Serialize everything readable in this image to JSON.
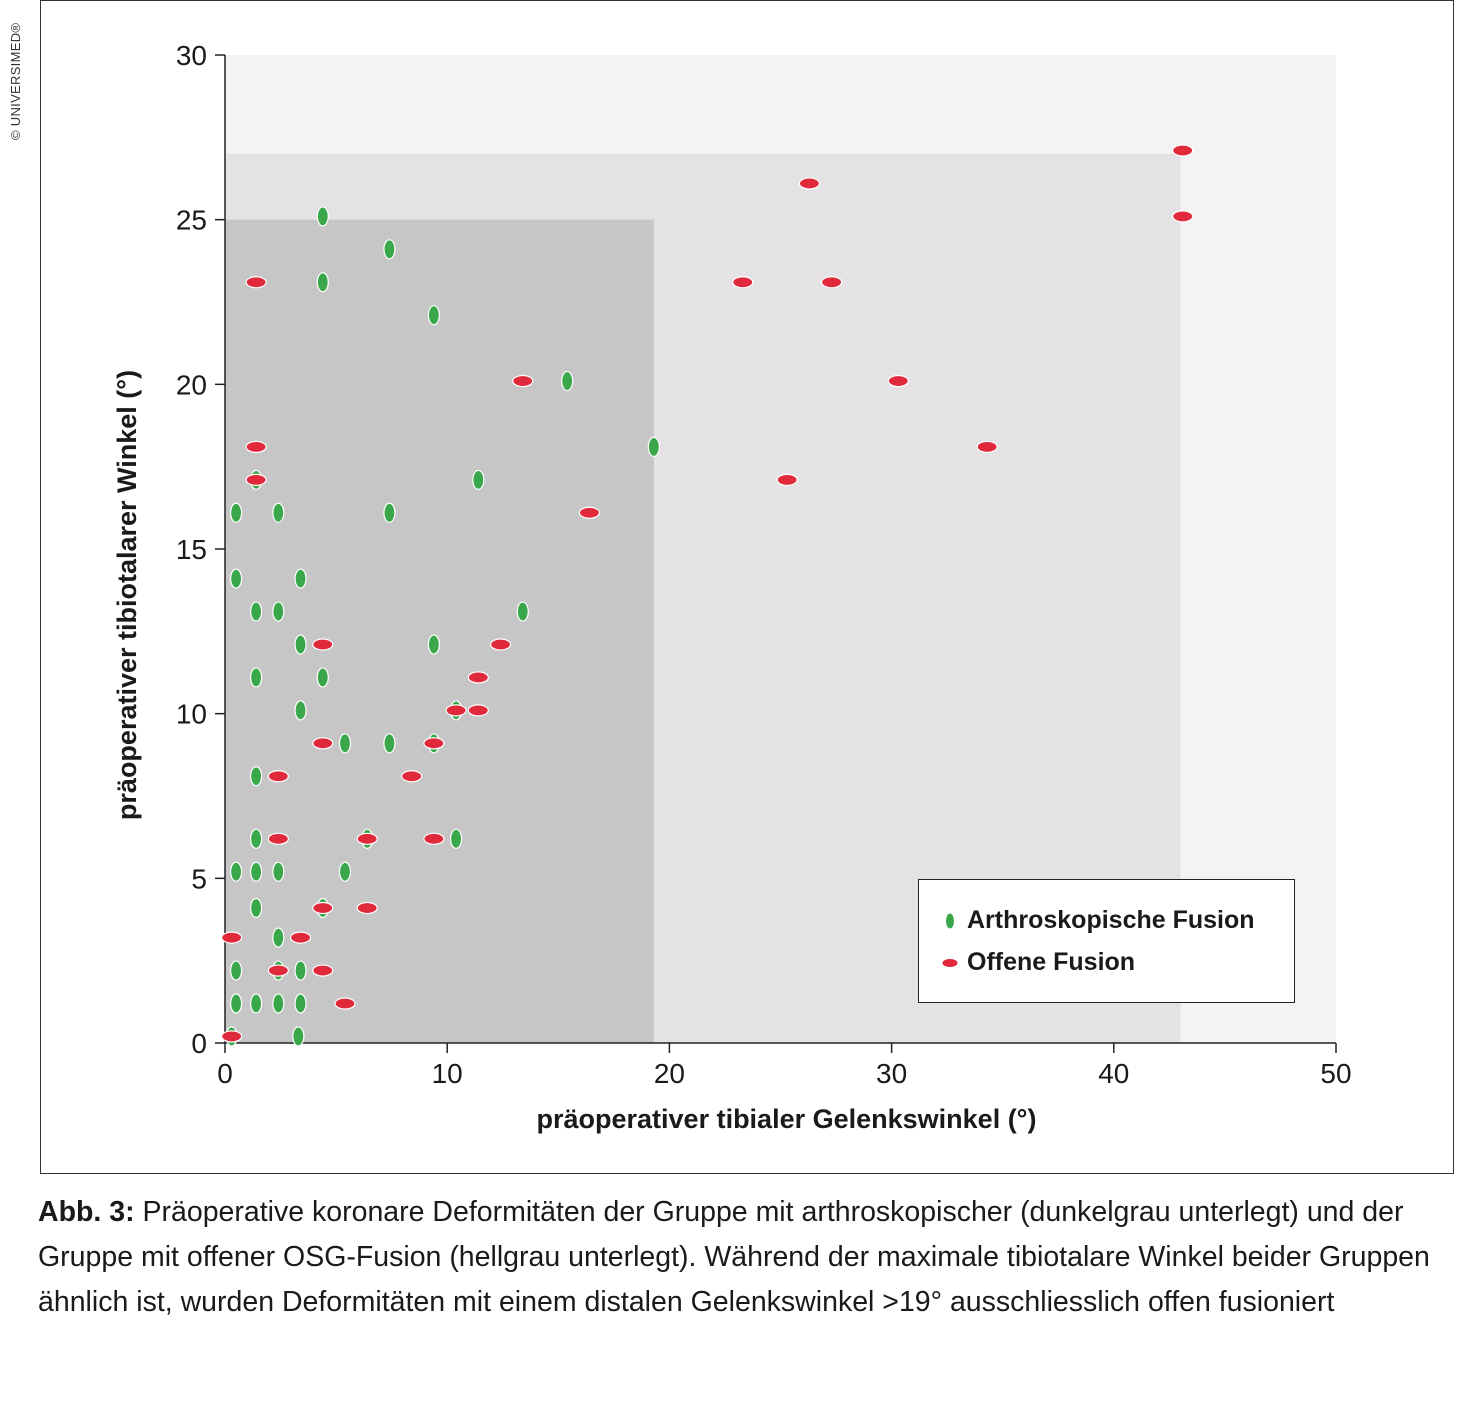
{
  "copyright": "© UNIVERSIMED®",
  "colors": {
    "arthro": "#3aa84a",
    "open": "#e0293a",
    "dark_region": "#c6c6c6",
    "light_region": "#e5e2e5",
    "plot_bg": "#f3f3f3"
  },
  "legend": {
    "arthro_label": "Arthroskopische Fusion",
    "open_label": "Offene Fusion"
  },
  "caption": {
    "label": "Abb. 3:",
    "text": " Präoperative koronare Deformitäten der Gruppe mit arthroskopischer (dunkelgrau unterlegt) und der Gruppe mit offener OSG-Fusion (hellgrau unterlegt). Während der maximale tibiotalare Winkel beider Gruppen ähnlich ist, wurden Deformitäten mit einem distalen Gelenkswinkel >19° ausschliesslich offen fusioniert"
  },
  "chart_data": {
    "type": "scatter",
    "xlabel": "präoperativer tibialer Gelenkswinkel (°)",
    "ylabel": "präoperativer tibiotalarer Winkel (°)",
    "xlim": [
      0,
      50
    ],
    "ylim": [
      0,
      30
    ],
    "xticks": [
      0,
      10,
      20,
      30,
      40,
      50
    ],
    "yticks": [
      0,
      5,
      10,
      15,
      20,
      25,
      30
    ],
    "legend_position": "bottom-right",
    "regions": [
      {
        "name": "hellgrau unterlegt",
        "x": [
          0,
          43
        ],
        "y": [
          0,
          27
        ]
      },
      {
        "name": "dunkelgrau unterlegt",
        "x": [
          0,
          19.3
        ],
        "y": [
          0,
          25
        ]
      }
    ],
    "series": [
      {
        "name": "Arthroskopische Fusion",
        "marker": "vertical-ellipse",
        "points": [
          [
            0.3,
            0.2
          ],
          [
            3.3,
            0.2
          ],
          [
            0.5,
            1.2
          ],
          [
            1.4,
            1.2
          ],
          [
            2.4,
            1.2
          ],
          [
            3.4,
            1.2
          ],
          [
            0.5,
            2.2
          ],
          [
            2.4,
            2.2
          ],
          [
            3.4,
            2.2
          ],
          [
            2.4,
            3.2
          ],
          [
            1.4,
            4.1
          ],
          [
            4.4,
            4.1
          ],
          [
            0.5,
            5.2
          ],
          [
            1.4,
            5.2
          ],
          [
            2.4,
            5.2
          ],
          [
            5.4,
            5.2
          ],
          [
            1.4,
            6.2
          ],
          [
            6.4,
            6.2
          ],
          [
            10.4,
            6.2
          ],
          [
            1.4,
            8.1
          ],
          [
            5.4,
            9.1
          ],
          [
            7.4,
            9.1
          ],
          [
            9.4,
            9.1
          ],
          [
            3.4,
            10.1
          ],
          [
            10.4,
            10.1
          ],
          [
            1.4,
            11.1
          ],
          [
            4.4,
            11.1
          ],
          [
            3.4,
            12.1
          ],
          [
            9.4,
            12.1
          ],
          [
            1.4,
            13.1
          ],
          [
            2.4,
            13.1
          ],
          [
            13.4,
            13.1
          ],
          [
            0.5,
            14.1
          ],
          [
            3.4,
            14.1
          ],
          [
            0.5,
            16.1
          ],
          [
            2.4,
            16.1
          ],
          [
            7.4,
            16.1
          ],
          [
            1.4,
            17.1
          ],
          [
            11.4,
            17.1
          ],
          [
            19.3,
            18.1
          ],
          [
            15.4,
            20.1
          ],
          [
            9.4,
            22.1
          ],
          [
            4.4,
            23.1
          ],
          [
            7.4,
            24.1
          ],
          [
            4.4,
            25.1
          ]
        ]
      },
      {
        "name": "Offene Fusion",
        "marker": "horizontal-ellipse",
        "points": [
          [
            0.3,
            0.2
          ],
          [
            5.4,
            1.2
          ],
          [
            2.4,
            2.2
          ],
          [
            4.4,
            2.2
          ],
          [
            0.3,
            3.2
          ],
          [
            3.4,
            3.2
          ],
          [
            4.4,
            4.1
          ],
          [
            6.4,
            4.1
          ],
          [
            2.4,
            6.2
          ],
          [
            6.4,
            6.2
          ],
          [
            9.4,
            6.2
          ],
          [
            2.4,
            8.1
          ],
          [
            8.4,
            8.1
          ],
          [
            4.4,
            9.1
          ],
          [
            9.4,
            9.1
          ],
          [
            10.4,
            10.1
          ],
          [
            11.4,
            10.1
          ],
          [
            11.4,
            11.1
          ],
          [
            4.4,
            12.1
          ],
          [
            12.4,
            12.1
          ],
          [
            16.4,
            16.1
          ],
          [
            1.4,
            17.1
          ],
          [
            25.3,
            17.1
          ],
          [
            1.4,
            18.1
          ],
          [
            34.3,
            18.1
          ],
          [
            13.4,
            20.1
          ],
          [
            30.3,
            20.1
          ],
          [
            1.4,
            23.1
          ],
          [
            23.3,
            23.1
          ],
          [
            27.3,
            23.1
          ],
          [
            43.1,
            25.1
          ],
          [
            26.3,
            26.1
          ],
          [
            43.1,
            27.1
          ]
        ]
      }
    ]
  }
}
